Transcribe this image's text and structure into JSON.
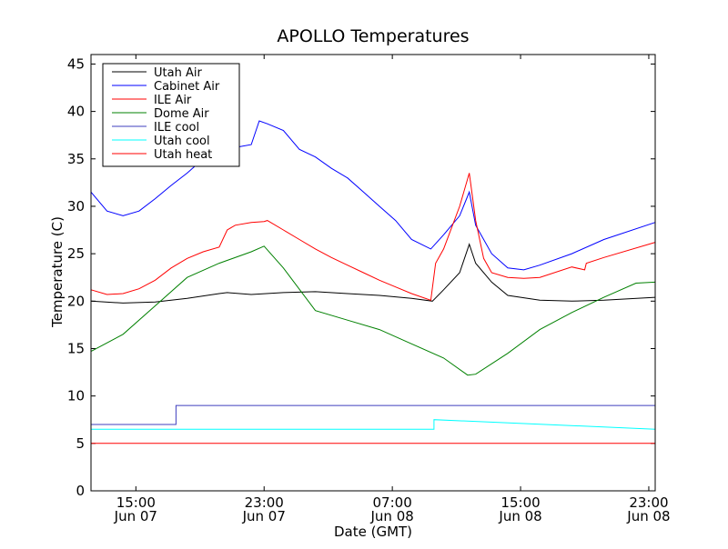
{
  "chart_data": {
    "type": "line",
    "title": "APOLLO Temperatures",
    "xlabel": "Date (GMT)",
    "ylabel": "Temperature (C)",
    "xlim": [
      0,
      35.2
    ],
    "ylim": [
      0,
      46
    ],
    "y_ticks": [
      0,
      5,
      10,
      15,
      20,
      25,
      30,
      35,
      40,
      45
    ],
    "x_ticks": [
      {
        "x": 2.8,
        "time": "15:00",
        "date": "Jun 07"
      },
      {
        "x": 10.8,
        "time": "23:00",
        "date": "Jun 07"
      },
      {
        "x": 18.8,
        "time": "07:00",
        "date": "Jun 08"
      },
      {
        "x": 26.8,
        "time": "15:00",
        "date": "Jun 08"
      },
      {
        "x": 34.8,
        "time": "23:00",
        "date": "Jun 08"
      }
    ],
    "legend_position": "top-left",
    "series": [
      {
        "name": "Utah Air",
        "color": "#000000",
        "x": [
          0,
          2,
          4,
          6,
          8,
          8.5,
          10,
          12,
          14,
          16,
          18,
          20,
          21.3,
          22,
          23,
          23.6,
          24,
          25,
          26,
          28,
          30,
          32,
          35.2
        ],
        "y": [
          20.0,
          19.8,
          19.9,
          20.3,
          20.8,
          20.9,
          20.7,
          20.9,
          21.0,
          20.8,
          20.6,
          20.3,
          20.0,
          21.2,
          23.0,
          26.0,
          24.0,
          22.0,
          20.6,
          20.1,
          20.0,
          20.1,
          20.4
        ]
      },
      {
        "name": "Cabinet Air",
        "color": "#0000ff",
        "x": [
          0,
          1,
          2,
          3,
          4,
          5,
          6,
          7,
          8,
          9,
          10,
          10.5,
          11,
          12,
          13,
          14,
          15,
          16,
          17,
          18,
          19,
          20,
          21.2,
          22,
          23,
          23.6,
          24,
          25,
          26,
          27,
          28,
          30,
          32,
          35.2
        ],
        "y": [
          31.5,
          29.5,
          29.0,
          29.5,
          30.8,
          32.2,
          33.5,
          35.0,
          36.0,
          36.2,
          36.5,
          39.0,
          38.7,
          38.0,
          36.0,
          35.2,
          34.0,
          33.0,
          31.5,
          30.0,
          28.5,
          26.5,
          25.5,
          27.0,
          29.0,
          31.5,
          28.0,
          25.0,
          23.5,
          23.3,
          23.8,
          25.0,
          26.5,
          28.3
        ]
      },
      {
        "name": "ILE Air",
        "color": "#ff0000",
        "x": [
          0,
          1,
          2,
          3,
          4,
          5,
          6,
          7,
          8,
          8.5,
          9,
          10,
          10.8,
          11,
          12,
          13,
          14,
          15,
          16,
          17,
          18,
          19,
          20,
          21.2,
          21.5,
          22,
          23,
          23.6,
          24,
          24.5,
          25,
          26,
          27,
          28,
          30,
          30.8,
          30.9,
          32,
          35.2
        ],
        "y": [
          21.2,
          20.7,
          20.8,
          21.3,
          22.2,
          23.5,
          24.5,
          25.2,
          25.7,
          27.5,
          28.0,
          28.3,
          28.4,
          28.5,
          27.5,
          26.5,
          25.5,
          24.6,
          23.8,
          23.0,
          22.2,
          21.5,
          20.8,
          20.1,
          24.0,
          25.5,
          30.0,
          33.5,
          28.5,
          24.5,
          23.0,
          22.5,
          22.4,
          22.5,
          23.6,
          23.3,
          24.0,
          24.6,
          26.2
        ]
      },
      {
        "name": "Dome Air",
        "color": "#008000",
        "x": [
          0,
          2,
          4,
          6,
          8,
          10,
          10.8,
          12,
          14,
          16,
          18,
          20,
          22,
          23.5,
          24,
          26,
          28,
          30,
          32,
          34,
          35.2
        ],
        "y": [
          14.7,
          16.5,
          19.5,
          22.5,
          24.0,
          25.2,
          25.8,
          23.5,
          19.0,
          18.0,
          17.0,
          15.5,
          14.0,
          12.2,
          12.3,
          14.5,
          17.0,
          18.8,
          20.4,
          21.9,
          22.0
        ]
      },
      {
        "name": "ILE cool",
        "color": "#3f3fbf",
        "x": [
          0,
          5.3,
          5.3,
          35.2
        ],
        "y": [
          7,
          7,
          9,
          9
        ]
      },
      {
        "name": "Utah cool",
        "color": "#00ffff",
        "x": [
          0,
          21.4,
          21.4,
          35.2
        ],
        "y": [
          6.5,
          6.5,
          7.5,
          6.5
        ]
      },
      {
        "name": "Utah heat",
        "color": "#ff0000",
        "x": [
          0,
          35.2
        ],
        "y": [
          5,
          5
        ]
      }
    ]
  }
}
